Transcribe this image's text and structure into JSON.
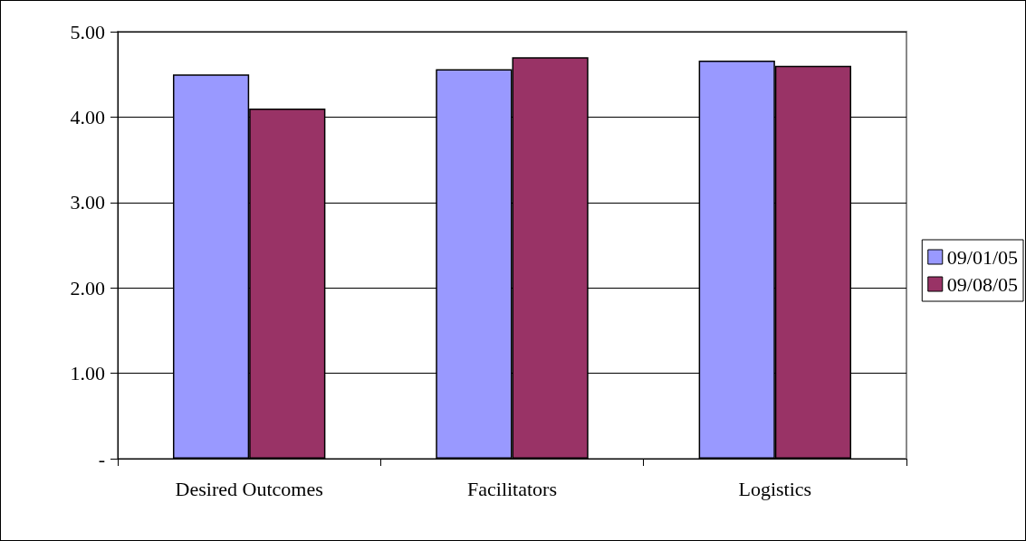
{
  "chart_data": {
    "type": "bar",
    "categories": [
      "Desired Outcomes",
      "Facilitators",
      "Logistics"
    ],
    "series": [
      {
        "name": "09/01/05",
        "color": "#9999ff",
        "values": [
          4.5,
          4.56,
          4.66
        ]
      },
      {
        "name": "09/08/05",
        "color": "#993366",
        "values": [
          4.1,
          4.7,
          4.6
        ]
      }
    ],
    "ylim": [
      0,
      5
    ],
    "yticks": [
      {
        "value": 0,
        "label": "-"
      },
      {
        "value": 1,
        "label": "1.00"
      },
      {
        "value": 2,
        "label": "2.00"
      },
      {
        "value": 3,
        "label": "3.00"
      },
      {
        "value": 4,
        "label": "4.00"
      },
      {
        "value": 5,
        "label": "5.00"
      }
    ],
    "grid": "y",
    "legend": "right"
  }
}
